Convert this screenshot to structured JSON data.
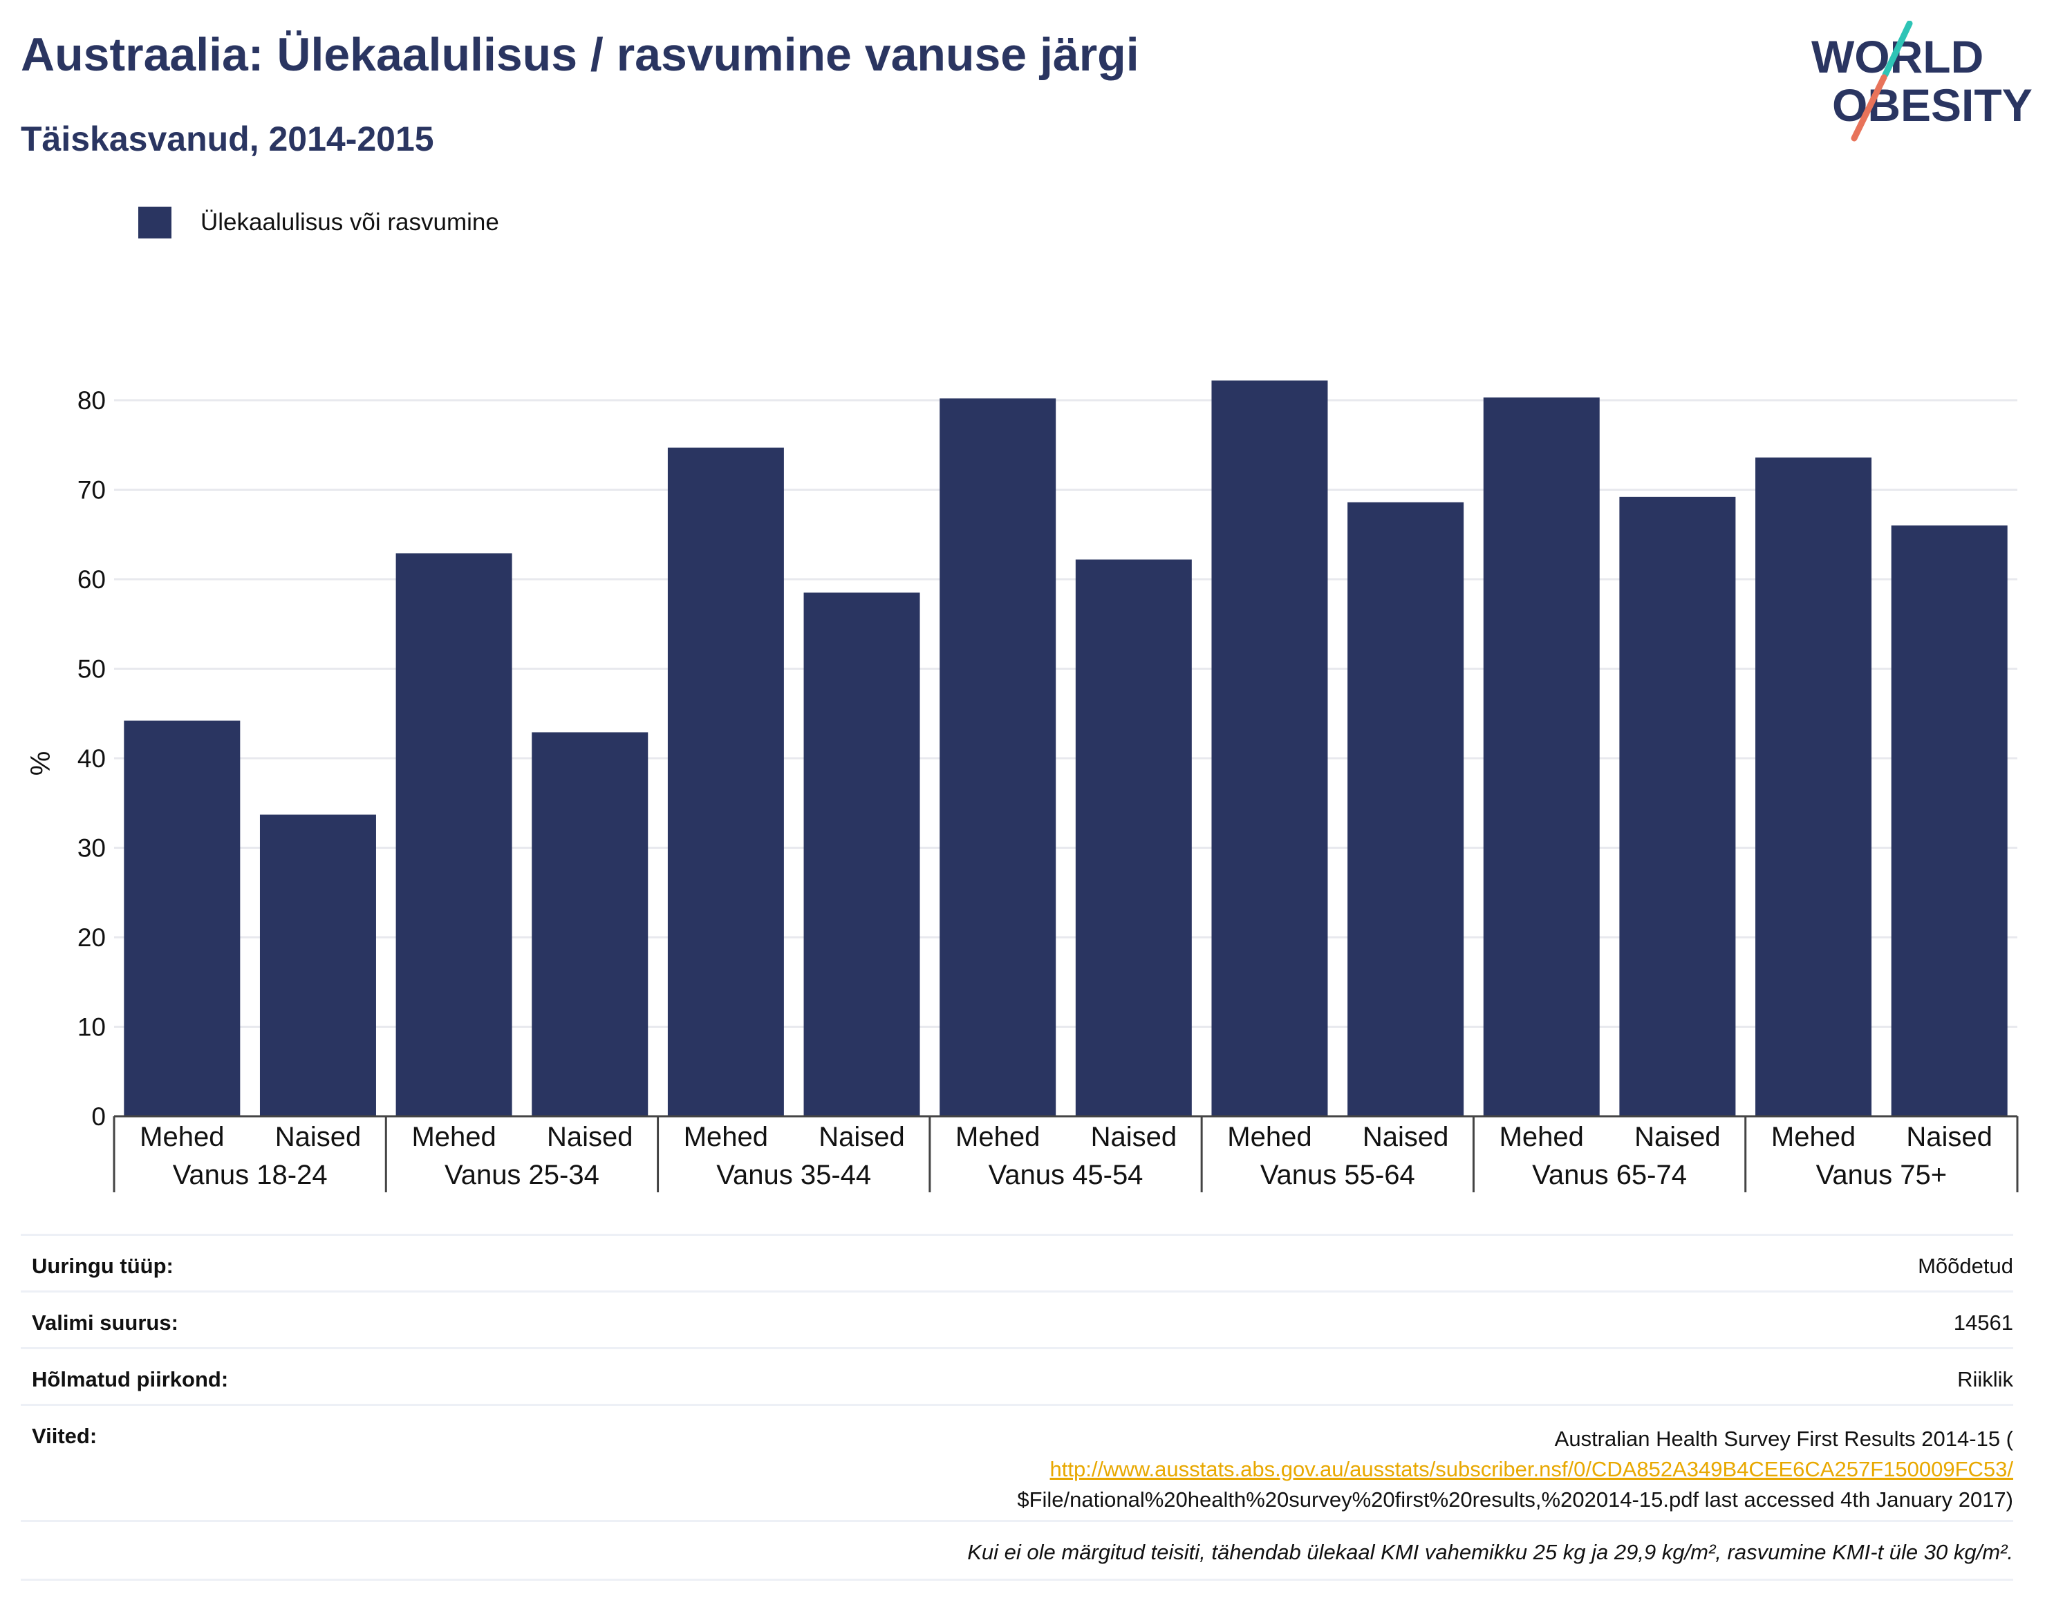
{
  "header": {
    "title": "Austraalia: Ülekaalulisus / rasvumine vanuse järgi",
    "subtitle": "Täiskasvanud, 2014-2015"
  },
  "logo": {
    "line1": "WORLD",
    "line2": "OBESITY",
    "accent_colors": [
      "#2ec4b6",
      "#e8735a"
    ]
  },
  "colors": {
    "bar": "#2a3561",
    "text": "#2a3561",
    "grid": "#e8e9ee",
    "link": "#e8a800"
  },
  "chart_data": {
    "type": "bar",
    "title": "Austraalia: Ülekaalulisus / rasvumine vanuse järgi",
    "subtitle": "Täiskasvanud, 2014-2015",
    "ylabel": "%",
    "xlabel": "",
    "ylim": [
      0,
      85
    ],
    "yticks": [
      0,
      10,
      20,
      30,
      40,
      50,
      60,
      70,
      80
    ],
    "grid": true,
    "legend_position": "top-left",
    "groups": [
      "Vanus 18-24",
      "Vanus 25-34",
      "Vanus 35-44",
      "Vanus 45-54",
      "Vanus 55-64",
      "Vanus 65-74",
      "Vanus 75+"
    ],
    "sexes": [
      "Mehed",
      "Naised"
    ],
    "series": [
      {
        "name": "Ülekaalulisus või rasvumine",
        "color": "#2a3561",
        "values": [
          44.2,
          33.7,
          62.9,
          42.9,
          74.7,
          58.5,
          80.2,
          62.2,
          82.2,
          68.6,
          80.3,
          69.2,
          73.6,
          66.0
        ]
      }
    ]
  },
  "info": {
    "survey_type": {
      "label": "Uuringu tüüp:",
      "value": "Mõõdetud"
    },
    "sample_size": {
      "label": "Valimi suurus:",
      "value": "14561"
    },
    "area": {
      "label": "Hõlmatud piirkond:",
      "value": "Riiklik"
    },
    "references": {
      "label": "Viited:",
      "line1": "Australian Health Survey First Results 2014-15 (",
      "link": "http://www.ausstats.abs.gov.au/ausstats/subscriber.nsf/0/CDA852A349B4CEE6CA257F150009FC53/",
      "line3": "$File/national%20health%20survey%20first%20results,%202014-15.pdf last accessed 4th January 2017)"
    },
    "note": "Kui ei ole märgitud teisiti, tähendab ülekaal KMI vahemikku 25 kg ja 29,9 kg/m², rasvumine KMI-t üle 30 kg/m²."
  }
}
